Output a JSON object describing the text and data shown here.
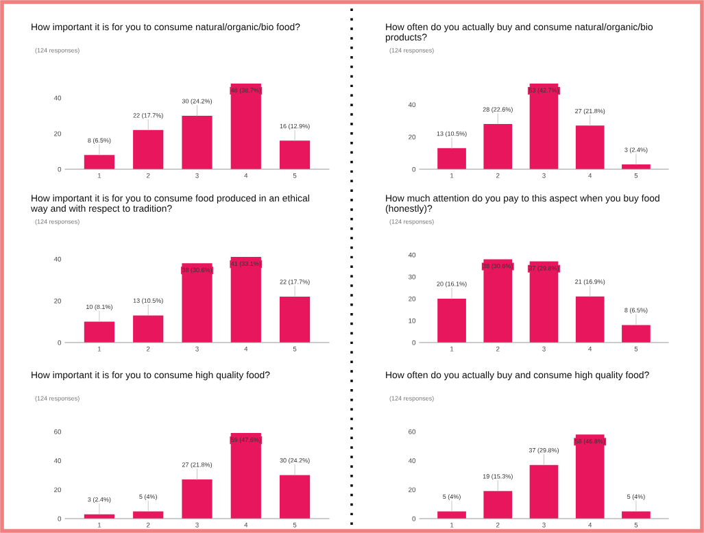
{
  "chart_data": [
    {
      "type": "bar",
      "title": "How important it is for you to consume natural/organic/bio food?",
      "subtitle": "(124 responses)",
      "categories": [
        "1",
        "2",
        "3",
        "4",
        "5"
      ],
      "values": [
        8,
        22,
        30,
        48,
        16
      ],
      "color": "#e8175d",
      "value_labels": [
        "8 (6.5%)",
        "22 (17.7%)",
        "30 (24.2%)",
        "48 (38.7%)",
        "16 (12.9%)"
      ],
      "ylim": [
        0,
        48
      ],
      "yticks": [
        0,
        20,
        40
      ],
      "grid": false
    },
    {
      "type": "bar",
      "title": "How often do you actually buy and consume natural/organic/bio products?",
      "subtitle": "(124 responses)",
      "categories": [
        "1",
        "2",
        "3",
        "4",
        "5"
      ],
      "values": [
        13,
        28,
        53,
        27,
        3
      ],
      "color": "#e8175d",
      "value_labels": [
        "13 (10.5%)",
        "28 (22.6%)",
        "53 (42.7%)",
        "27 (21.8%)",
        "3 (2.4%)"
      ],
      "ylim": [
        0,
        53
      ],
      "yticks": [
        0,
        20,
        40
      ],
      "grid": false
    },
    {
      "type": "bar",
      "title": "How important it is for you to consume food produced in an ethical way and with respect to tradition?",
      "subtitle": "(124 responses)",
      "categories": [
        "1",
        "2",
        "3",
        "4",
        "5"
      ],
      "values": [
        10,
        13,
        38,
        41,
        22
      ],
      "color": "#e8175d",
      "value_labels": [
        "10 (8.1%)",
        "13 (10.5%)",
        "38 (30.6%)",
        "41 (33.1%)",
        "22 (17.7%)"
      ],
      "ylim": [
        0,
        42
      ],
      "yticks": [
        0,
        20,
        40
      ],
      "grid": false
    },
    {
      "type": "bar",
      "title": "How much attention do you pay to this aspect when you buy food (honestly)?",
      "subtitle": "(124 responses)",
      "categories": [
        "1",
        "2",
        "3",
        "4",
        "5"
      ],
      "values": [
        20,
        38,
        37,
        21,
        8
      ],
      "color": "#e8175d",
      "value_labels": [
        "20 (16.1%)",
        "38 (30.6%)",
        "37 (29.8%)",
        "21 (16.9%)",
        "8 (6.5%)"
      ],
      "ylim": [
        0,
        40
      ],
      "yticks": [
        0,
        10,
        20,
        30,
        40
      ],
      "grid": false
    },
    {
      "type": "bar",
      "title": "How important it is for you to consume high quality food?",
      "subtitle": "(124 responses)",
      "categories": [
        "1",
        "2",
        "3",
        "4",
        "5"
      ],
      "values": [
        3,
        5,
        27,
        59,
        30
      ],
      "color": "#e8175d",
      "value_labels": [
        "3 (2.4%)",
        "5 (4%)",
        "27 (21.8%)",
        "59 (47.6%)",
        "30 (24.2%)"
      ],
      "ylim": [
        0,
        60
      ],
      "yticks": [
        0,
        20,
        40,
        60
      ],
      "grid": false
    },
    {
      "type": "bar",
      "title": "How often do you actually buy and consume high quality food?",
      "subtitle": "(124 responses)",
      "categories": [
        "1",
        "2",
        "3",
        "4",
        "5"
      ],
      "values": [
        5,
        19,
        37,
        58,
        5
      ],
      "color": "#e8175d",
      "value_labels": [
        "5 (4%)",
        "19 (15.3%)",
        "37 (29.8%)",
        "58 (46.8%)",
        "5 (4%)"
      ],
      "ylim": [
        0,
        60
      ],
      "yticks": [
        0,
        20,
        40,
        60
      ],
      "grid": false
    }
  ]
}
